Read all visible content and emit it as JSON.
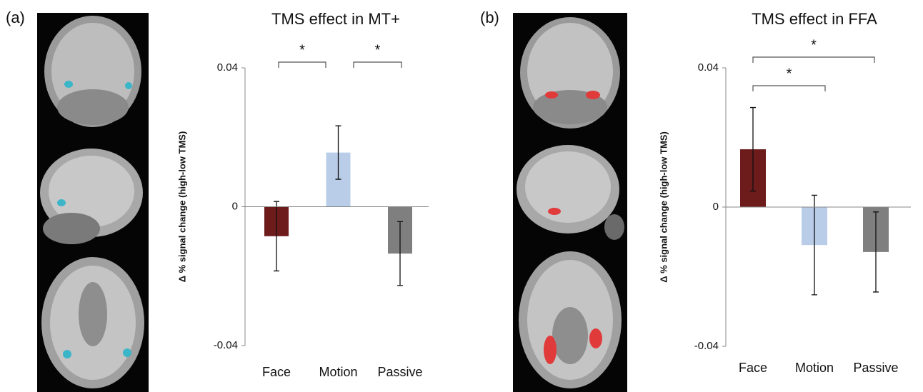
{
  "panel_labels": [
    "(a)",
    "(b)"
  ],
  "chart_data": [
    {
      "type": "bar",
      "title": "TMS effect in MT+",
      "y_label": "Δ % signal change (high-low TMS)",
      "categories": [
        "Face",
        "Motion",
        "Passive"
      ],
      "values": [
        -0.0085,
        0.0156,
        -0.0135
      ],
      "errors": [
        0.01,
        0.0077,
        0.0092
      ],
      "colors": [
        "#6e1b1b",
        "#b9cde8",
        "#7f7f7f"
      ],
      "ylim": [
        -0.04,
        0.04
      ],
      "yticks": [
        -0.04,
        0,
        0.04
      ],
      "annotations": [
        "*",
        "*"
      ]
    },
    {
      "type": "bar",
      "title": "TMS effect in FFA",
      "y_label": "Δ % signal change (high-low TMS)",
      "categories": [
        "Face",
        "Motion",
        "Passive"
      ],
      "values": [
        0.0166,
        -0.0109,
        -0.0129
      ],
      "errors": [
        0.012,
        0.0143,
        0.0115
      ],
      "colors": [
        "#6e1b1b",
        "#b9cde8",
        "#7f7f7f"
      ],
      "ylim": [
        -0.04,
        0.04
      ],
      "yticks": [
        -0.04,
        0,
        0.04
      ],
      "annotations": [
        "*",
        "*"
      ]
    }
  ]
}
